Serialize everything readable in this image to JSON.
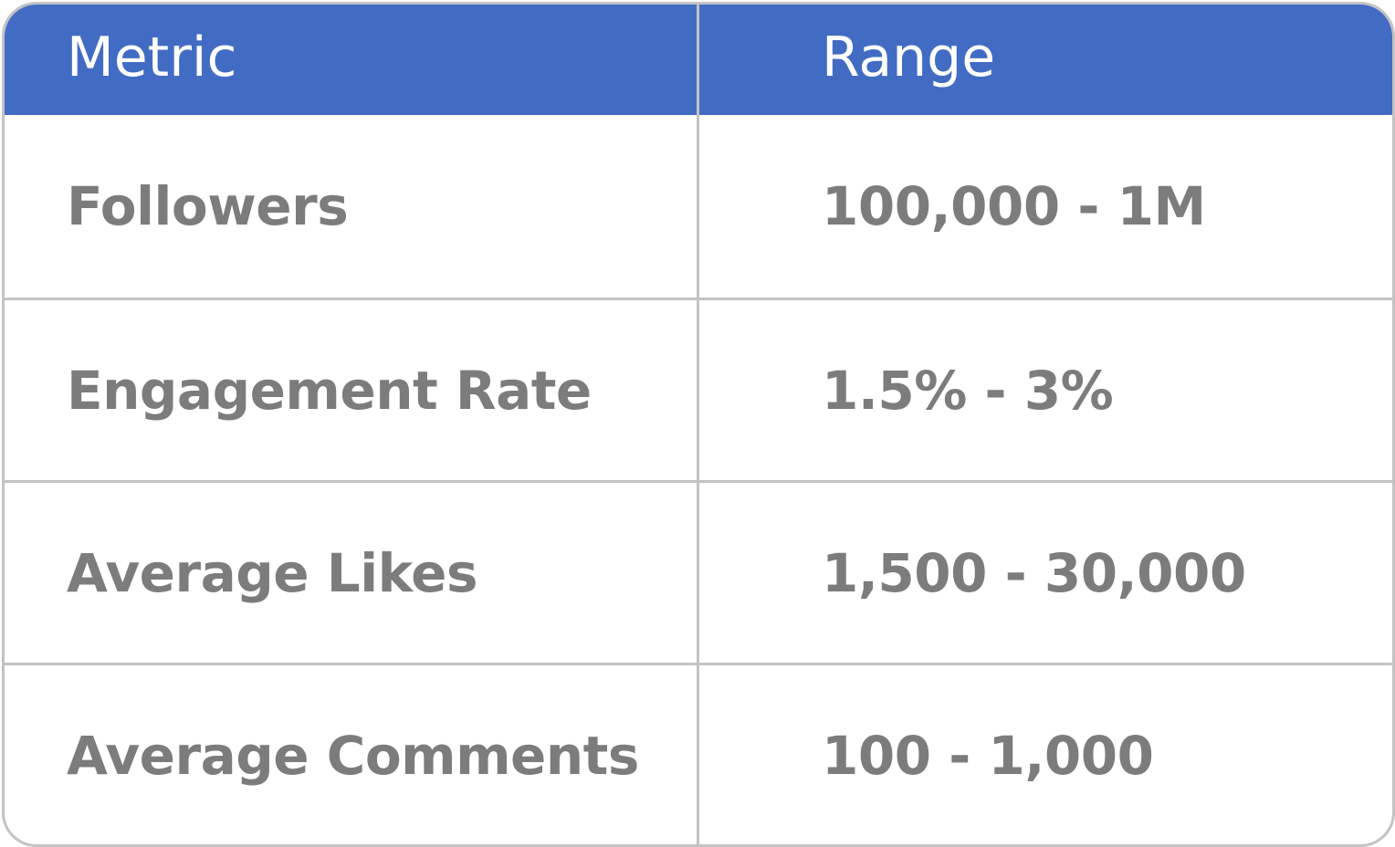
{
  "chart_data": {
    "type": "table",
    "columns": [
      "Metric",
      "Range"
    ],
    "rows": [
      [
        "Followers",
        "100,000 - 1M"
      ],
      [
        "Engagement Rate",
        "1.5% - 3%"
      ],
      [
        "Average Likes",
        "1,500 - 30,000"
      ],
      [
        "Average Comments",
        "100 - 1,000"
      ]
    ]
  },
  "colors": {
    "header_background": "#426cc3",
    "header_text": "#ffffff",
    "body_text": "#7c7c7c",
    "grid_lines": "#c3c3c3"
  }
}
